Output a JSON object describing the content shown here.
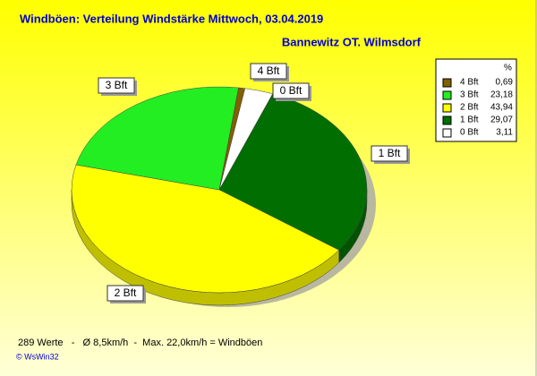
{
  "chart_data": {
    "type": "pie",
    "title": "Windböen: Verteilung Windstärke  Mittwoch, 03.04.2019",
    "subtitle": "Bannewitz OT. Wilmsdorf",
    "legend_header": "%",
    "categories": [
      "4 Bft",
      "3 Bft",
      "2 Bft",
      "1 Bft",
      "0 Bft"
    ],
    "values": [
      0.69,
      23.18,
      43.94,
      29.07,
      3.11
    ],
    "value_labels": [
      "0,69",
      "23,18",
      "43,94",
      "29,07",
      "3,11"
    ],
    "colors": [
      "#806000",
      "#22ee22",
      "#ffff00",
      "#006e00",
      "#ffffff"
    ],
    "footer": "289 Werte   -   Ø 8,5km/h  -  Max. 22,0km/h = Windböen",
    "credit": "© WsWin32"
  }
}
